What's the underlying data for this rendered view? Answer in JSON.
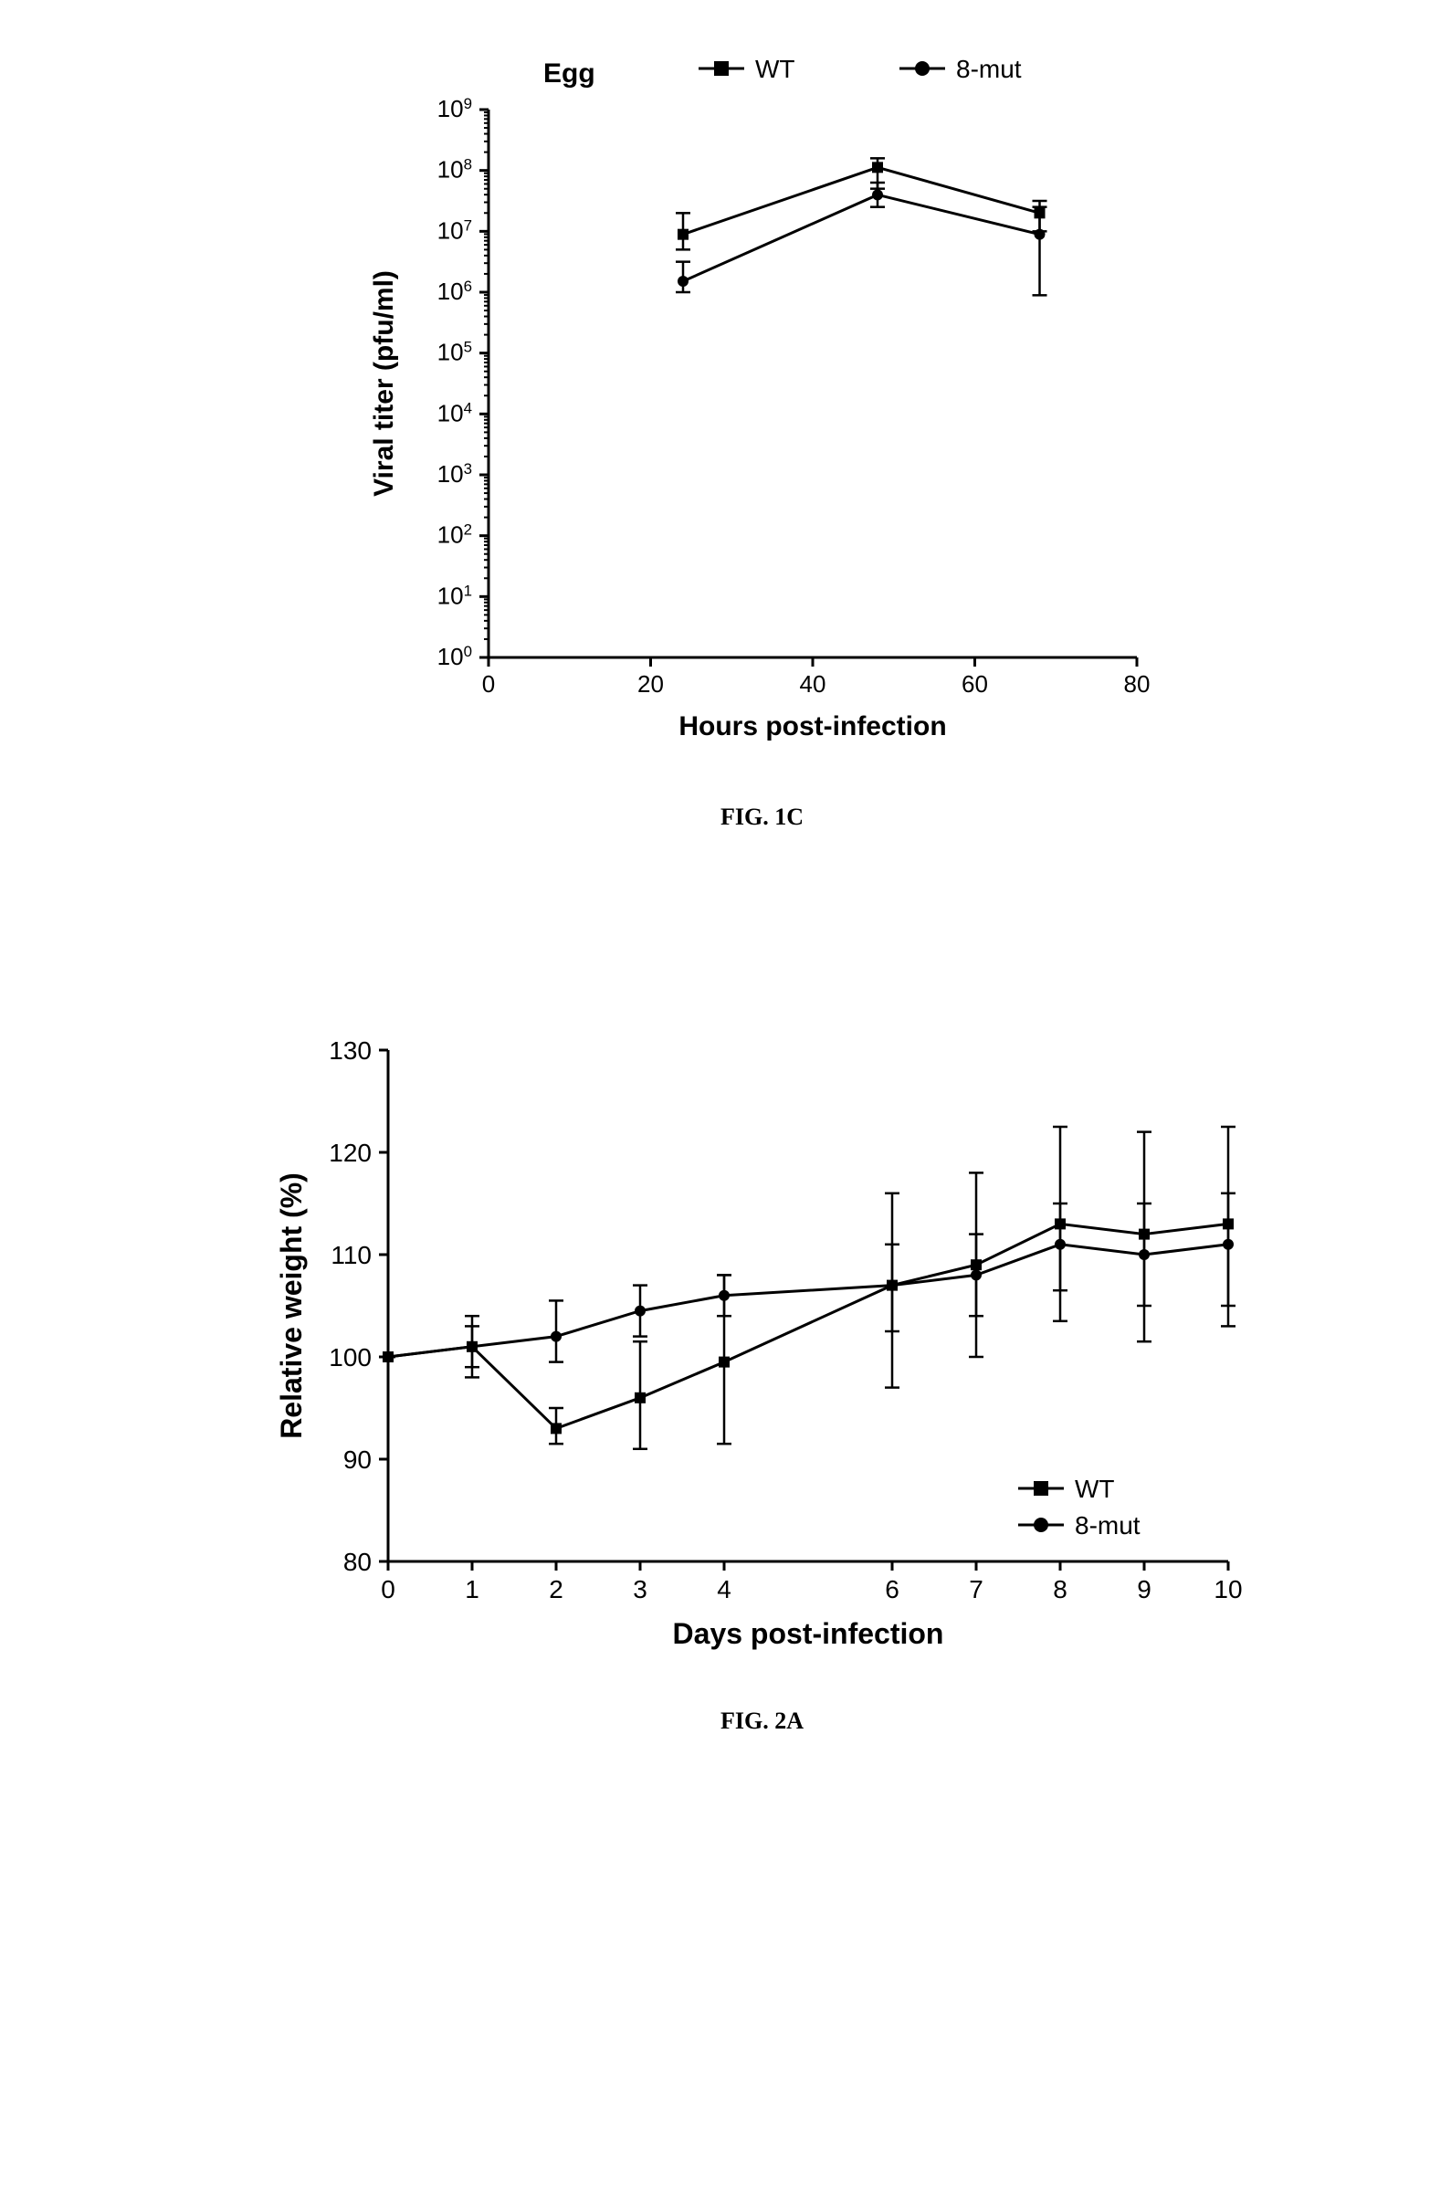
{
  "fig1c": {
    "type": "line",
    "title": "Egg",
    "title_fontsize": 30,
    "title_fontweight": "bold",
    "caption": "FIG. 1C",
    "xlabel": "Hours post-infection",
    "ylabel": "Viral titer (pfu/ml)",
    "label_fontsize": 30,
    "label_fontweight": "bold",
    "tick_fontsize": 26,
    "xlim": [
      0,
      80
    ],
    "xtick_step": 20,
    "xticks": [
      0,
      20,
      40,
      60,
      80
    ],
    "yscale": "log",
    "ylim_exp": [
      0,
      9
    ],
    "yticks_exp": [
      0,
      1,
      2,
      3,
      4,
      5,
      6,
      7,
      8,
      9
    ],
    "legend": {
      "items": [
        {
          "label": "WT",
          "marker": "square",
          "color": "#000000"
        },
        {
          "label": "8-mut",
          "marker": "circle",
          "color": "#000000"
        }
      ],
      "position": "top",
      "fontsize": 28
    },
    "series": [
      {
        "name": "WT",
        "marker": "square",
        "marker_size": 12,
        "line_width": 3,
        "color": "#000000",
        "x": [
          24,
          48,
          68
        ],
        "y_exp": [
          6.95,
          8.05,
          7.3
        ],
        "err_low_exp": [
          6.7,
          7.7,
          7.0
        ],
        "err_high_exp": [
          7.3,
          8.2,
          7.5
        ]
      },
      {
        "name": "8-mut",
        "marker": "circle",
        "marker_size": 12,
        "line_width": 3,
        "color": "#000000",
        "x": [
          24,
          48,
          68
        ],
        "y_exp": [
          6.18,
          7.6,
          6.95
        ],
        "err_low_exp": [
          6.0,
          7.4,
          5.95
        ],
        "err_high_exp": [
          6.5,
          7.8,
          7.4
        ]
      }
    ],
    "background_color": "#ffffff",
    "axis_color": "#000000",
    "axis_width": 3
  },
  "fig2a": {
    "type": "line",
    "caption": "FIG. 2A",
    "xlabel": "Days post-infection",
    "ylabel": "Relative weight (%)",
    "label_fontsize": 32,
    "label_fontweight": "bold",
    "tick_fontsize": 28,
    "xlim": [
      0,
      10
    ],
    "xticks": [
      0,
      1,
      2,
      3,
      4,
      6,
      7,
      8,
      9,
      10
    ],
    "ylim": [
      80,
      130
    ],
    "ytick_step": 10,
    "yticks": [
      80,
      90,
      100,
      110,
      120,
      130
    ],
    "legend": {
      "items": [
        {
          "label": "WT",
          "marker": "square",
          "color": "#000000"
        },
        {
          "label": "8-mut",
          "marker": "circle",
          "color": "#000000"
        }
      ],
      "position": "bottom-right",
      "fontsize": 28
    },
    "series": [
      {
        "name": "WT",
        "marker": "square",
        "marker_size": 12,
        "line_width": 3,
        "color": "#000000",
        "x": [
          0,
          1,
          2,
          3,
          4,
          6,
          7,
          8,
          9,
          10
        ],
        "y": [
          100,
          101,
          93,
          96,
          99.5,
          107,
          109,
          113,
          112,
          113
        ],
        "err_low": [
          100,
          98,
          91.5,
          91,
          91.5,
          97,
          100,
          103.5,
          101.5,
          105
        ],
        "err_high": [
          100,
          104,
          95,
          101.5,
          108,
          116,
          118,
          122.5,
          122,
          122.5
        ]
      },
      {
        "name": "8-mut",
        "marker": "circle",
        "marker_size": 12,
        "line_width": 3,
        "color": "#000000",
        "x": [
          0,
          1,
          2,
          3,
          4,
          6,
          7,
          8,
          9,
          10
        ],
        "y": [
          100,
          101,
          102,
          104.5,
          106,
          107,
          108,
          111,
          110,
          111
        ],
        "err_low": [
          100,
          99,
          99.5,
          102,
          104,
          102.5,
          104,
          106.5,
          105,
          103
        ],
        "err_high": [
          100,
          103,
          105.5,
          107,
          108,
          111,
          112,
          115,
          115,
          116
        ]
      }
    ],
    "background_color": "#ffffff",
    "axis_color": "#000000",
    "axis_width": 3
  }
}
